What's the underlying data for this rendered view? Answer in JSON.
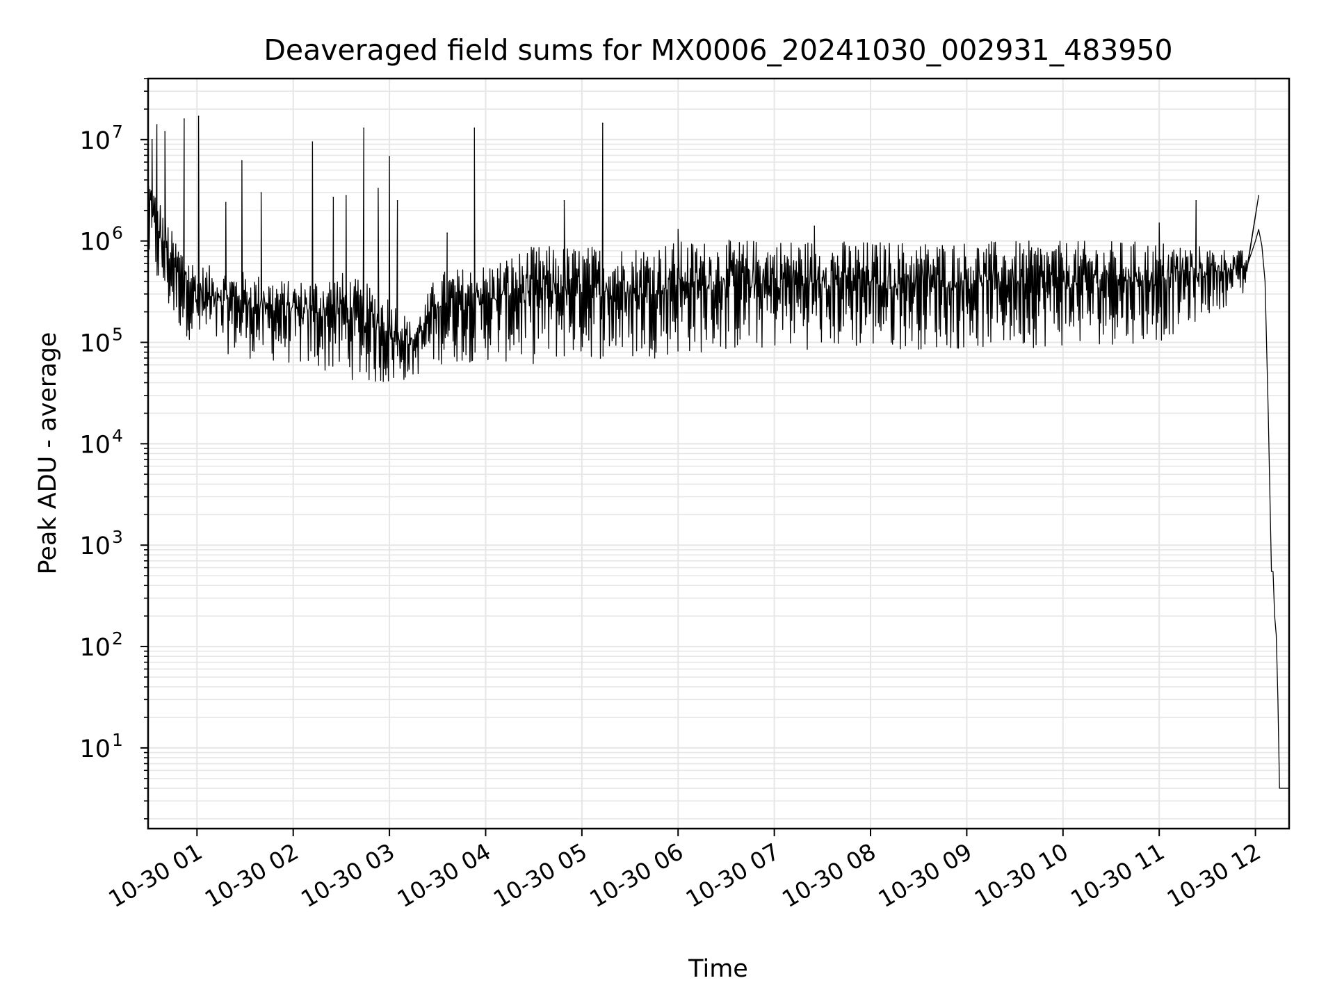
{
  "chart_data": {
    "type": "line",
    "title": "Deaveraged field sums for MX0006_20241030_002931_483950",
    "xlabel": "Time",
    "ylabel": "Peak ADU - average",
    "yscale": "log",
    "ylim": [
      1.6,
      40000000
    ],
    "xlim": [
      "2024-10-30T00:29:31",
      "2024-10-30T12:21:00"
    ],
    "grid": true,
    "line_color": "#000000",
    "grid_color": "#e6e6e6",
    "x_ticks": [
      {
        "time": "2024-10-30T01:00",
        "label": "10-30 01"
      },
      {
        "time": "2024-10-30T02:00",
        "label": "10-30 02"
      },
      {
        "time": "2024-10-30T03:00",
        "label": "10-30 03"
      },
      {
        "time": "2024-10-30T04:00",
        "label": "10-30 04"
      },
      {
        "time": "2024-10-30T05:00",
        "label": "10-30 05"
      },
      {
        "time": "2024-10-30T06:00",
        "label": "10-30 06"
      },
      {
        "time": "2024-10-30T07:00",
        "label": "10-30 07"
      },
      {
        "time": "2024-10-30T08:00",
        "label": "10-30 08"
      },
      {
        "time": "2024-10-30T09:00",
        "label": "10-30 09"
      },
      {
        "time": "2024-10-30T10:00",
        "label": "10-30 10"
      },
      {
        "time": "2024-10-30T11:00",
        "label": "10-30 11"
      },
      {
        "time": "2024-10-30T12:00",
        "label": "10-30 12"
      }
    ],
    "y_ticks": [
      {
        "value": 10,
        "base": "10",
        "exp": "1"
      },
      {
        "value": 100,
        "base": "10",
        "exp": "2"
      },
      {
        "value": 1000,
        "base": "10",
        "exp": "3"
      },
      {
        "value": 10000,
        "base": "10",
        "exp": "4"
      },
      {
        "value": 100000,
        "base": "10",
        "exp": "5"
      },
      {
        "value": 1000000,
        "base": "10",
        "exp": "6"
      },
      {
        "value": 10000000,
        "base": "10",
        "exp": "7"
      }
    ],
    "series": [
      {
        "envelope": [
          {
            "time": "2024-10-30T00:30",
            "low": 500000,
            "high": 5000000
          },
          {
            "time": "2024-10-30T00:45",
            "low": 150000,
            "high": 1200000
          },
          {
            "time": "2024-10-30T01:00",
            "low": 90000,
            "high": 600000
          },
          {
            "time": "2024-10-30T01:30",
            "low": 70000,
            "high": 500000
          },
          {
            "time": "2024-10-30T02:00",
            "low": 60000,
            "high": 400000
          },
          {
            "time": "2024-10-30T02:30",
            "low": 45000,
            "high": 500000
          },
          {
            "time": "2024-10-30T03:00",
            "low": 35000,
            "high": 300000
          },
          {
            "time": "2024-10-30T03:15",
            "low": 45000,
            "high": 150000
          },
          {
            "time": "2024-10-30T03:30",
            "low": 60000,
            "high": 500000
          },
          {
            "time": "2024-10-30T04:00",
            "low": 65000,
            "high": 600000
          },
          {
            "time": "2024-10-30T04:30",
            "low": 60000,
            "high": 900000
          },
          {
            "time": "2024-10-30T05:00",
            "low": 70000,
            "high": 900000
          },
          {
            "time": "2024-10-30T05:30",
            "low": 65000,
            "high": 900000
          },
          {
            "time": "2024-10-30T06:00",
            "low": 75000,
            "high": 1000000
          },
          {
            "time": "2024-10-30T07:00",
            "low": 85000,
            "high": 1050000
          },
          {
            "time": "2024-10-30T08:00",
            "low": 85000,
            "high": 1000000
          },
          {
            "time": "2024-10-30T09:00",
            "low": 85000,
            "high": 1000000
          },
          {
            "time": "2024-10-30T10:00",
            "low": 90000,
            "high": 1000000
          },
          {
            "time": "2024-10-30T11:00",
            "low": 100000,
            "high": 1000000
          },
          {
            "time": "2024-10-30T11:55",
            "low": 300000,
            "high": 800000
          }
        ],
        "spikes": [
          {
            "time": "2024-10-30T00:32",
            "value": 10000000
          },
          {
            "time": "2024-10-30T00:35",
            "value": 14000000
          },
          {
            "time": "2024-10-30T00:40",
            "value": 12000000
          },
          {
            "time": "2024-10-30T00:52",
            "value": 16000000
          },
          {
            "time": "2024-10-30T01:01",
            "value": 17000000
          },
          {
            "time": "2024-10-30T01:18",
            "value": 2400000
          },
          {
            "time": "2024-10-30T01:28",
            "value": 6200000
          },
          {
            "time": "2024-10-30T01:40",
            "value": 3000000
          },
          {
            "time": "2024-10-30T02:12",
            "value": 9500000
          },
          {
            "time": "2024-10-30T02:25",
            "value": 2700000
          },
          {
            "time": "2024-10-30T02:33",
            "value": 2800000
          },
          {
            "time": "2024-10-30T02:44",
            "value": 13000000
          },
          {
            "time": "2024-10-30T02:53",
            "value": 3300000
          },
          {
            "time": "2024-10-30T03:00",
            "value": 6800000
          },
          {
            "time": "2024-10-30T03:05",
            "value": 2500000
          },
          {
            "time": "2024-10-30T03:36",
            "value": 1200000
          },
          {
            "time": "2024-10-30T03:53",
            "value": 13000000
          },
          {
            "time": "2024-10-30T04:49",
            "value": 2500000
          },
          {
            "time": "2024-10-30T05:13",
            "value": 14500000
          },
          {
            "time": "2024-10-30T06:00",
            "value": 1300000
          },
          {
            "time": "2024-10-30T07:25",
            "value": 1400000
          },
          {
            "time": "2024-10-30T11:00",
            "value": 1500000
          },
          {
            "time": "2024-10-30T11:23",
            "value": 2500000
          },
          {
            "time": "2024-10-30T12:02",
            "value": 2800000
          }
        ],
        "tail": [
          {
            "time": "2024-10-30T12:00",
            "value": 1000000
          },
          {
            "time": "2024-10-30T12:02",
            "value": 1300000
          },
          {
            "time": "2024-10-30T12:04",
            "value": 900000
          },
          {
            "time": "2024-10-30T12:06",
            "value": 400000
          },
          {
            "time": "2024-10-30T12:08",
            "value": 20000
          },
          {
            "time": "2024-10-30T12:10",
            "value": 550
          },
          {
            "time": "2024-10-30T12:11",
            "value": 550
          },
          {
            "time": "2024-10-30T12:12",
            "value": 200
          },
          {
            "time": "2024-10-30T12:13",
            "value": 130
          },
          {
            "time": "2024-10-30T12:14",
            "value": 30
          },
          {
            "time": "2024-10-30T12:15",
            "value": 4
          },
          {
            "time": "2024-10-30T12:21",
            "value": 4
          }
        ]
      }
    ]
  }
}
